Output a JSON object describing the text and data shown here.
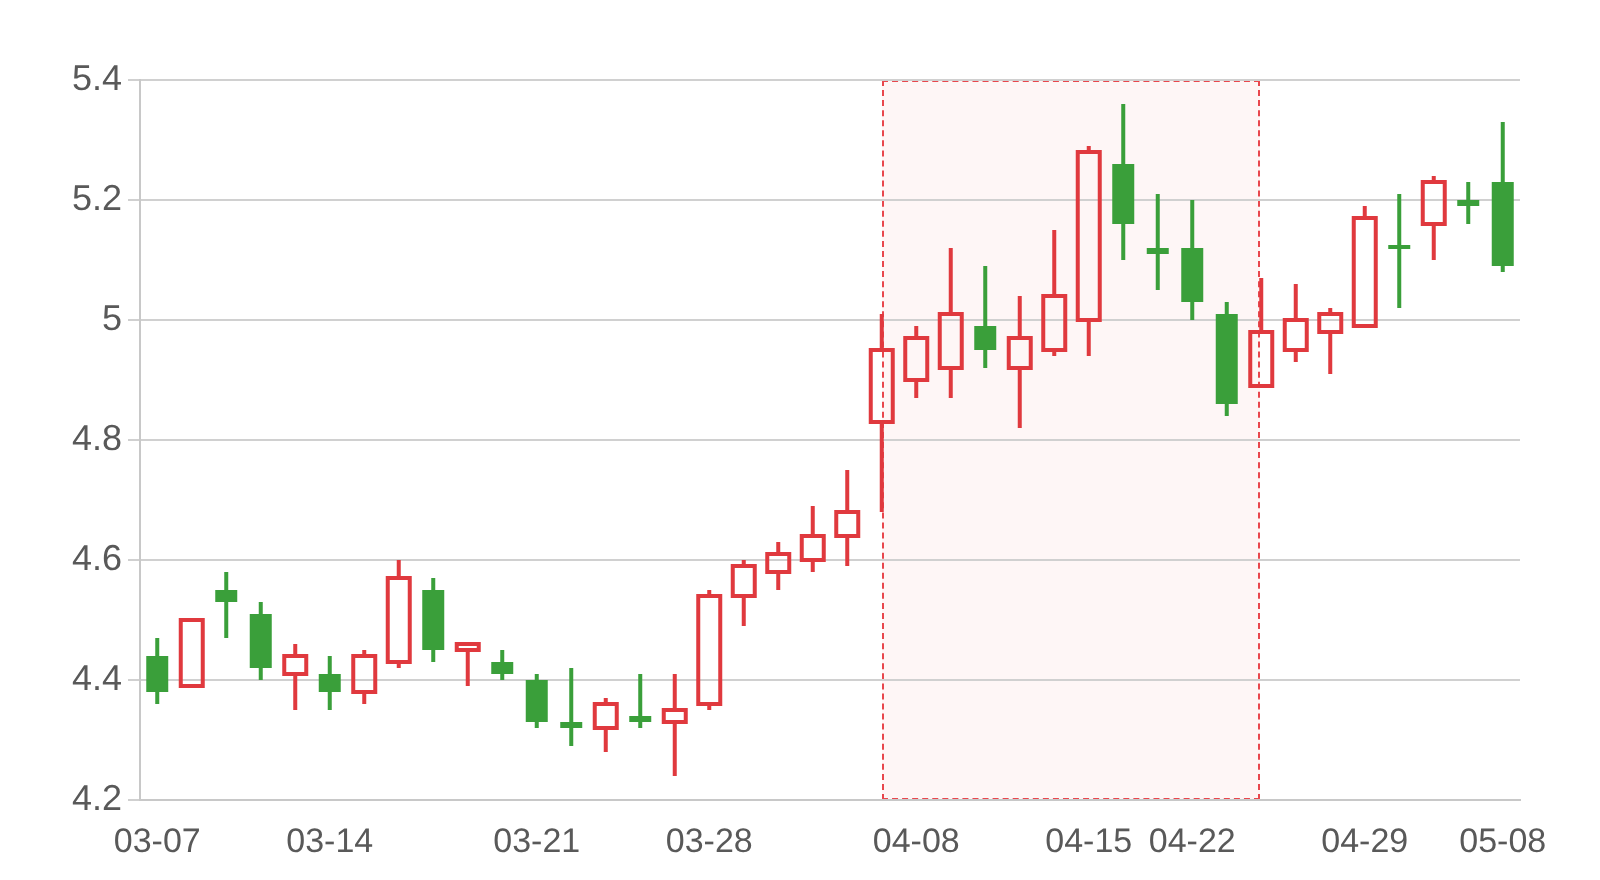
{
  "chart_data": {
    "type": "candlestick",
    "categories": [
      "03-07",
      null,
      null,
      null,
      null,
      "03-14",
      null,
      null,
      null,
      null,
      null,
      "03-21",
      null,
      null,
      null,
      null,
      "03-28",
      null,
      null,
      null,
      null,
      null,
      "04-08",
      null,
      null,
      null,
      null,
      "04-15",
      null,
      null,
      "04-22",
      null,
      null,
      null,
      null,
      "04-29",
      null,
      null,
      null,
      "05-08"
    ],
    "ohlc": [
      [
        4.44,
        4.47,
        4.36,
        4.38
      ],
      [
        4.39,
        4.5,
        4.39,
        4.5
      ],
      [
        4.55,
        4.58,
        4.47,
        4.53
      ],
      [
        4.51,
        4.53,
        4.4,
        4.42
      ],
      [
        4.41,
        4.46,
        4.35,
        4.44
      ],
      [
        4.41,
        4.44,
        4.35,
        4.38
      ],
      [
        4.38,
        4.45,
        4.36,
        4.44
      ],
      [
        4.43,
        4.6,
        4.42,
        4.57
      ],
      [
        4.55,
        4.57,
        4.43,
        4.45
      ],
      [
        4.45,
        4.46,
        4.39,
        4.46
      ],
      [
        4.43,
        4.45,
        4.4,
        4.41
      ],
      [
        4.4,
        4.41,
        4.32,
        4.33
      ],
      [
        4.33,
        4.42,
        4.29,
        4.32
      ],
      [
        4.32,
        4.37,
        4.28,
        4.36
      ],
      [
        4.34,
        4.41,
        4.32,
        4.33
      ],
      [
        4.33,
        4.41,
        4.24,
        4.35
      ],
      [
        4.36,
        4.55,
        4.35,
        4.54
      ],
      [
        4.54,
        4.6,
        4.49,
        4.59
      ],
      [
        4.58,
        4.63,
        4.55,
        4.61
      ],
      [
        4.6,
        4.69,
        4.58,
        4.64
      ],
      [
        4.64,
        4.75,
        4.59,
        4.68
      ],
      [
        4.83,
        5.01,
        4.68,
        4.95
      ],
      [
        4.9,
        4.99,
        4.87,
        4.97
      ],
      [
        4.92,
        5.12,
        4.87,
        5.01
      ],
      [
        4.99,
        5.09,
        4.92,
        4.95
      ],
      [
        4.92,
        5.04,
        4.82,
        4.97
      ],
      [
        4.95,
        5.15,
        4.94,
        5.04
      ],
      [
        5.0,
        5.29,
        4.94,
        5.28
      ],
      [
        5.26,
        5.36,
        5.1,
        5.16
      ],
      [
        5.12,
        5.21,
        5.05,
        5.11
      ],
      [
        5.12,
        5.2,
        5.0,
        5.03
      ],
      [
        5.01,
        5.03,
        4.84,
        4.86
      ],
      [
        4.89,
        5.07,
        4.89,
        4.98
      ],
      [
        4.95,
        5.06,
        4.93,
        5.0
      ],
      [
        4.98,
        5.02,
        4.91,
        5.01
      ],
      [
        4.99,
        5.19,
        4.99,
        5.17
      ],
      [
        5.125,
        5.21,
        5.02,
        5.12
      ],
      [
        5.16,
        5.24,
        5.1,
        5.23
      ],
      [
        5.2,
        5.23,
        5.16,
        5.19
      ],
      [
        5.23,
        5.33,
        5.08,
        5.09
      ]
    ],
    "colors": [
      "#3a9f3a",
      "#e0393e",
      "#3a9f3a",
      "#3a9f3a",
      "#e0393e",
      "#3a9f3a",
      "#e0393e",
      "#e0393e",
      "#3a9f3a",
      "#e0393e",
      "#3a9f3a",
      "#3a9f3a",
      "#3a9f3a",
      "#e0393e",
      "#3a9f3a",
      "#e0393e",
      "#e0393e",
      "#e0393e",
      "#e0393e",
      "#e0393e",
      "#e0393e",
      "#e0393e",
      "#e0393e",
      "#e0393e",
      "#3a9f3a",
      "#e0393e",
      "#e0393e",
      "#e0393e",
      "#3a9f3a",
      "#3a9f3a",
      "#3a9f3a",
      "#3a9f3a",
      "#e0393e",
      "#e0393e",
      "#e0393e",
      "#e0393e",
      "#3a9f3a",
      "#e0393e",
      "#3a9f3a",
      "#3a9f3a"
    ],
    "ylim": [
      4.2,
      5.4
    ],
    "yticks": [
      4.2,
      4.4,
      4.6,
      4.8,
      5,
      5.2,
      5.4
    ],
    "grid": "y"
  }
}
